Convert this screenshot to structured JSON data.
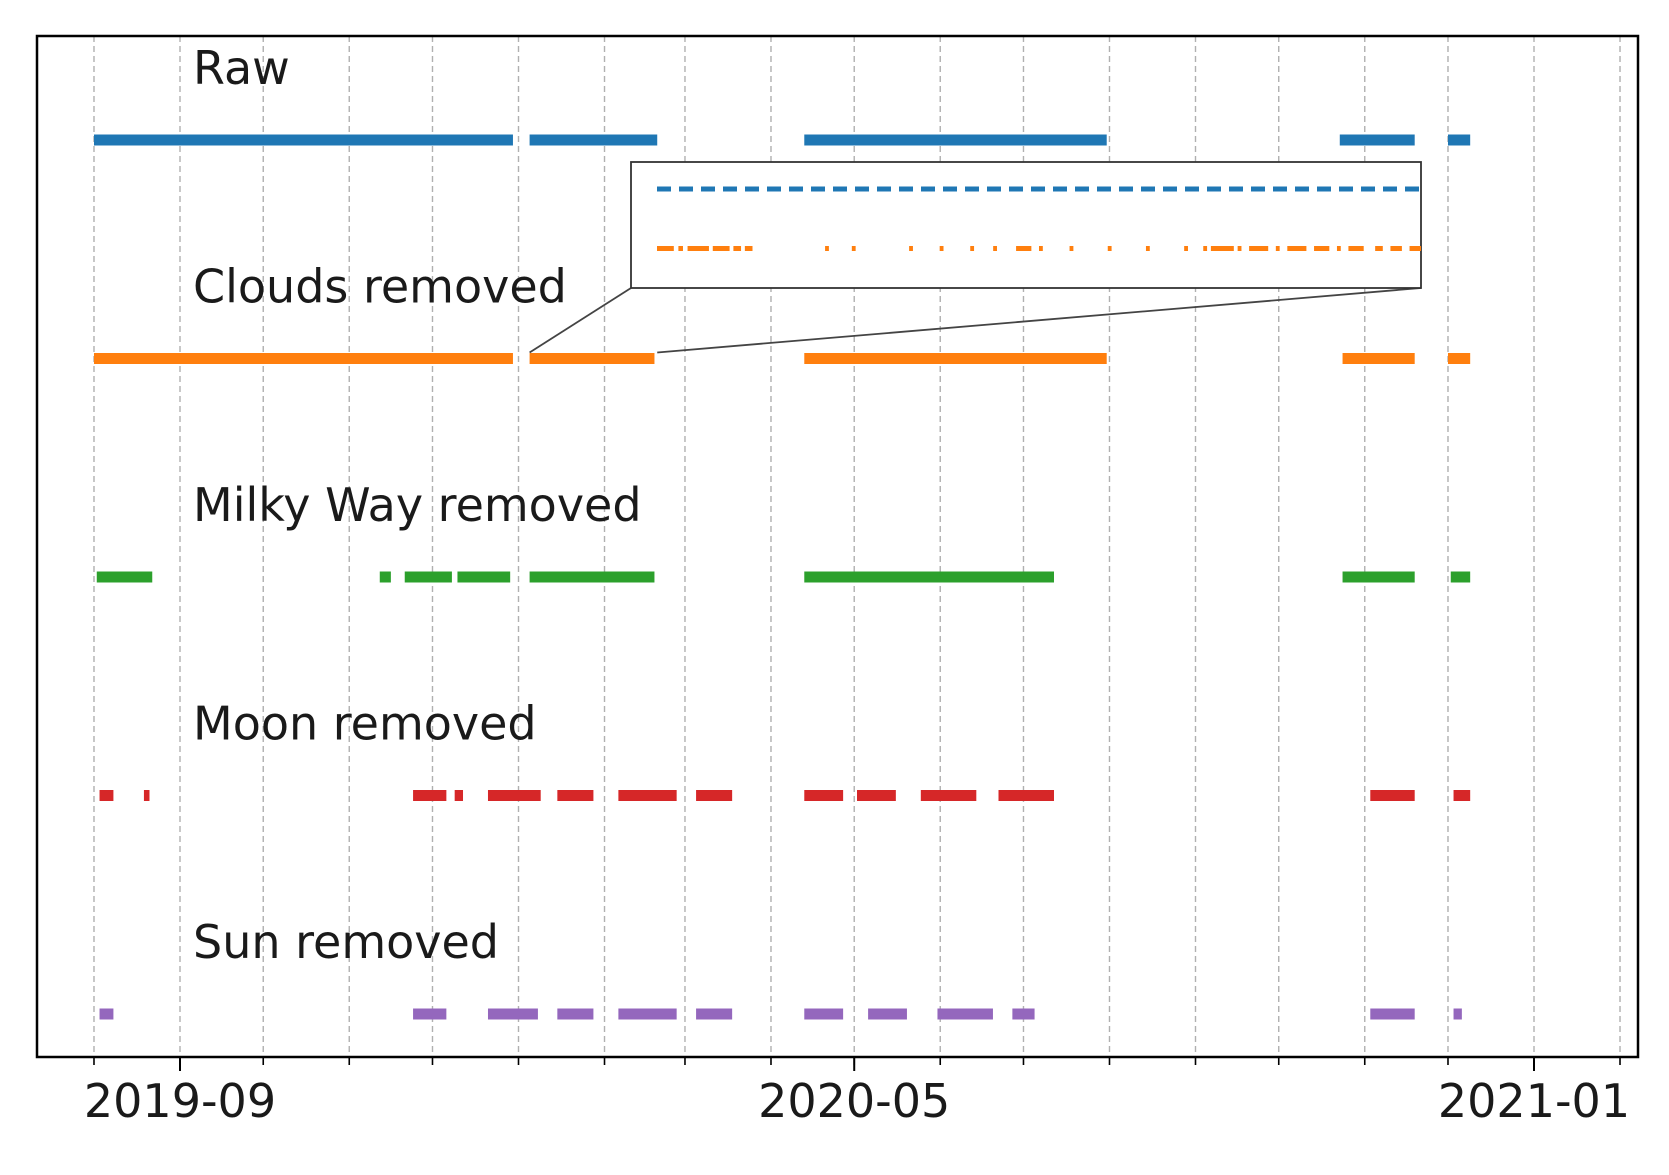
{
  "chart_data": {
    "type": "timeline",
    "x_axis": {
      "kind": "date",
      "range": [
        "2019-07-20",
        "2021-02-10"
      ],
      "tick_labels": [
        "2019-09",
        "2020-05",
        "2021-01"
      ],
      "grid": true
    },
    "series": [
      {
        "name": "Raw",
        "color": "#1f77b4",
        "segments": [
          [
            "2019-08-01",
            "2019-12-30"
          ],
          [
            "2020-01-05",
            "2020-02-20"
          ],
          [
            "2020-04-13",
            "2020-07-31"
          ],
          [
            "2020-10-23",
            "2020-11-19"
          ],
          [
            "2020-12-01",
            "2020-12-09"
          ]
        ]
      },
      {
        "name": "Clouds removed",
        "color": "#ff7f0e",
        "segments": [
          [
            "2019-08-01",
            "2019-12-30"
          ],
          [
            "2020-01-05",
            "2020-02-19"
          ],
          [
            "2020-04-13",
            "2020-07-31"
          ],
          [
            "2020-10-24",
            "2020-11-19"
          ],
          [
            "2020-12-01",
            "2020-12-09"
          ]
        ]
      },
      {
        "name": "Milky Way removed",
        "color": "#2ca02c",
        "segments": [
          [
            "2019-08-02",
            "2019-08-22"
          ],
          [
            "2019-11-12",
            "2019-11-16"
          ],
          [
            "2019-11-21",
            "2019-12-08"
          ],
          [
            "2019-12-10",
            "2019-12-29"
          ],
          [
            "2020-01-05",
            "2020-02-19"
          ],
          [
            "2020-04-13",
            "2020-07-12"
          ],
          [
            "2020-10-24",
            "2020-11-19"
          ],
          [
            "2020-12-02",
            "2020-12-09"
          ]
        ]
      },
      {
        "name": "Moon removed",
        "color": "#d62728",
        "segments": [
          [
            "2019-08-03",
            "2019-08-08"
          ],
          [
            "2019-08-19",
            "2019-08-21"
          ],
          [
            "2019-11-24",
            "2019-12-06"
          ],
          [
            "2019-12-09",
            "2019-12-12"
          ],
          [
            "2019-12-21",
            "2020-01-09"
          ],
          [
            "2020-01-15",
            "2020-01-28"
          ],
          [
            "2020-02-06",
            "2020-02-27"
          ],
          [
            "2020-03-05",
            "2020-03-18"
          ],
          [
            "2020-04-13",
            "2020-04-27"
          ],
          [
            "2020-05-02",
            "2020-05-16"
          ],
          [
            "2020-05-25",
            "2020-06-14"
          ],
          [
            "2020-06-22",
            "2020-07-12"
          ],
          [
            "2020-11-03",
            "2020-11-19"
          ],
          [
            "2020-12-03",
            "2020-12-09"
          ]
        ]
      },
      {
        "name": "Sun removed",
        "color": "#9467bd",
        "segments": [
          [
            "2019-08-03",
            "2019-08-08"
          ],
          [
            "2019-11-24",
            "2019-12-06"
          ],
          [
            "2019-12-21",
            "2020-01-08"
          ],
          [
            "2020-01-15",
            "2020-01-28"
          ],
          [
            "2020-02-06",
            "2020-02-27"
          ],
          [
            "2020-03-05",
            "2020-03-18"
          ],
          [
            "2020-04-13",
            "2020-04-27"
          ],
          [
            "2020-05-06",
            "2020-05-20"
          ],
          [
            "2020-05-31",
            "2020-06-20"
          ],
          [
            "2020-06-27",
            "2020-07-05"
          ],
          [
            "2020-11-03",
            "2020-11-19"
          ],
          [
            "2020-12-03",
            "2020-12-06"
          ]
        ]
      }
    ],
    "inset": {
      "source_series": [
        "Raw",
        "Clouds removed"
      ],
      "source_range": [
        "2020-01-05",
        "2020-02-20"
      ],
      "raw_pattern": "dashed",
      "clouds_removed_pattern": "sparse dashes and dots"
    }
  }
}
